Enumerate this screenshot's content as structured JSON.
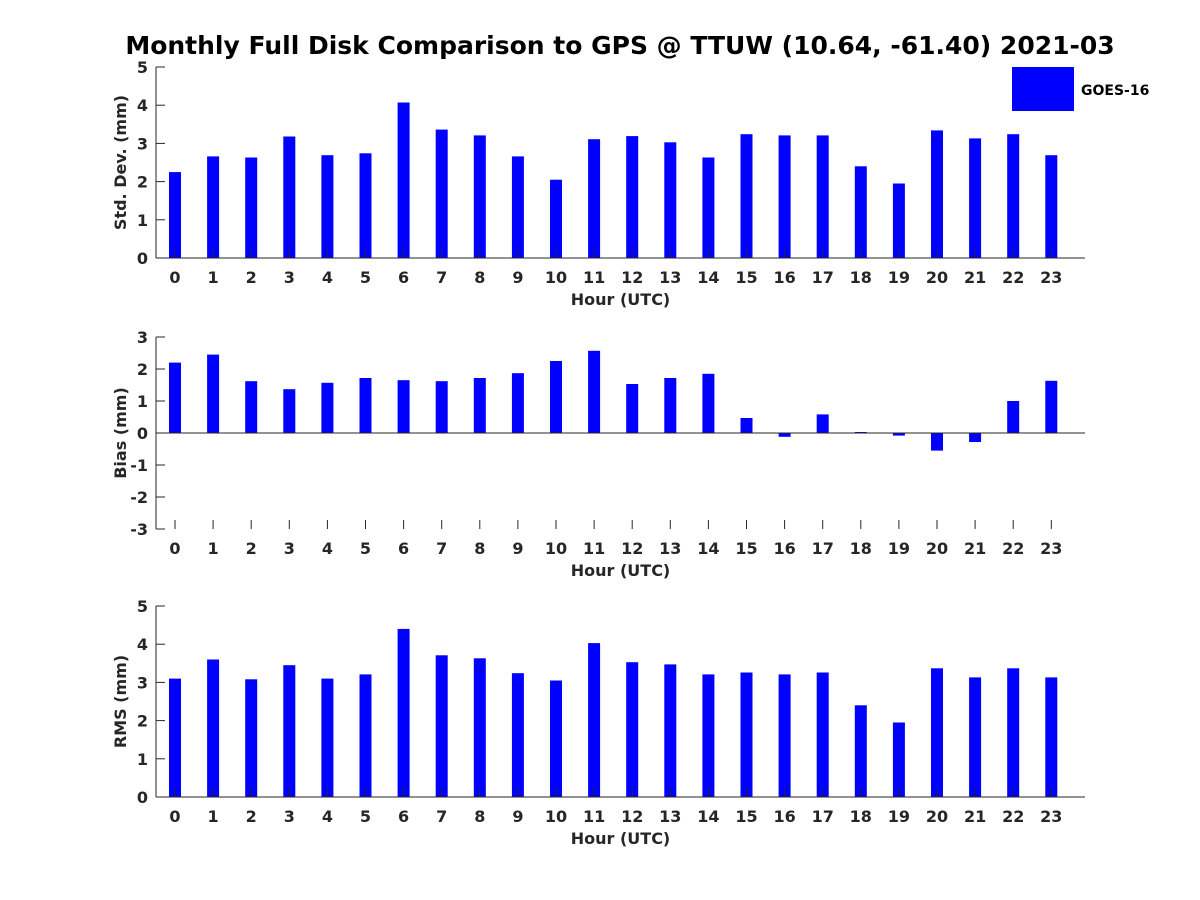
{
  "title": "Monthly Full Disk Comparison to GPS @ TTUW (10.64, -61.40) 2021-03",
  "legend": {
    "label": "GOES-16",
    "color": "#0000FF",
    "placement": "top-right"
  },
  "chart_data": [
    {
      "type": "bar",
      "name": "std-dev",
      "categories": [
        "0",
        "1",
        "2",
        "3",
        "4",
        "5",
        "6",
        "7",
        "8",
        "9",
        "10",
        "11",
        "12",
        "13",
        "14",
        "15",
        "16",
        "17",
        "18",
        "19",
        "20",
        "21",
        "22",
        "23"
      ],
      "series": [
        {
          "name": "GOES-16",
          "values": [
            2.25,
            2.66,
            2.63,
            3.18,
            2.69,
            2.74,
            4.07,
            3.36,
            3.21,
            2.66,
            2.05,
            3.11,
            3.19,
            3.03,
            2.63,
            3.24,
            3.21,
            3.21,
            2.4,
            1.95,
            3.34,
            3.13,
            3.24,
            2.69
          ]
        }
      ],
      "xlabel": "Hour (UTC)",
      "ylabel": "Std. Dev. (mm)",
      "ylim": [
        0,
        5
      ],
      "yticks": [
        "0",
        "1",
        "2",
        "3",
        "4",
        "5"
      ],
      "grid": false
    },
    {
      "type": "bar",
      "name": "bias",
      "categories": [
        "0",
        "1",
        "2",
        "3",
        "4",
        "5",
        "6",
        "7",
        "8",
        "9",
        "10",
        "11",
        "12",
        "13",
        "14",
        "15",
        "16",
        "17",
        "18",
        "19",
        "20",
        "21",
        "22",
        "23"
      ],
      "series": [
        {
          "name": "GOES-16",
          "values": [
            2.2,
            2.45,
            1.62,
            1.37,
            1.57,
            1.72,
            1.65,
            1.62,
            1.72,
            1.87,
            2.25,
            2.57,
            1.53,
            1.72,
            1.85,
            0.47,
            -0.12,
            0.58,
            0.03,
            -0.08,
            -0.55,
            -0.28,
            1.0,
            1.63
          ]
        }
      ],
      "xlabel": "Hour (UTC)",
      "ylabel": "Bias (mm)",
      "ylim": [
        -3,
        3
      ],
      "yticks": [
        "-3",
        "-2",
        "-1",
        "0",
        "1",
        "2",
        "3"
      ],
      "zero_line": true,
      "grid": false
    },
    {
      "type": "bar",
      "name": "rms",
      "categories": [
        "0",
        "1",
        "2",
        "3",
        "4",
        "5",
        "6",
        "7",
        "8",
        "9",
        "10",
        "11",
        "12",
        "13",
        "14",
        "15",
        "16",
        "17",
        "18",
        "19",
        "20",
        "21",
        "22",
        "23"
      ],
      "series": [
        {
          "name": "GOES-16",
          "values": [
            3.1,
            3.6,
            3.08,
            3.45,
            3.1,
            3.21,
            4.4,
            3.71,
            3.63,
            3.24,
            3.05,
            4.03,
            3.53,
            3.47,
            3.21,
            3.26,
            3.21,
            3.26,
            2.4,
            1.95,
            3.37,
            3.13,
            3.37,
            3.13
          ]
        }
      ],
      "xlabel": "Hour (UTC)",
      "ylabel": "RMS (mm)",
      "ylim": [
        0,
        5
      ],
      "yticks": [
        "0",
        "1",
        "2",
        "3",
        "4",
        "5"
      ],
      "grid": false
    }
  ]
}
